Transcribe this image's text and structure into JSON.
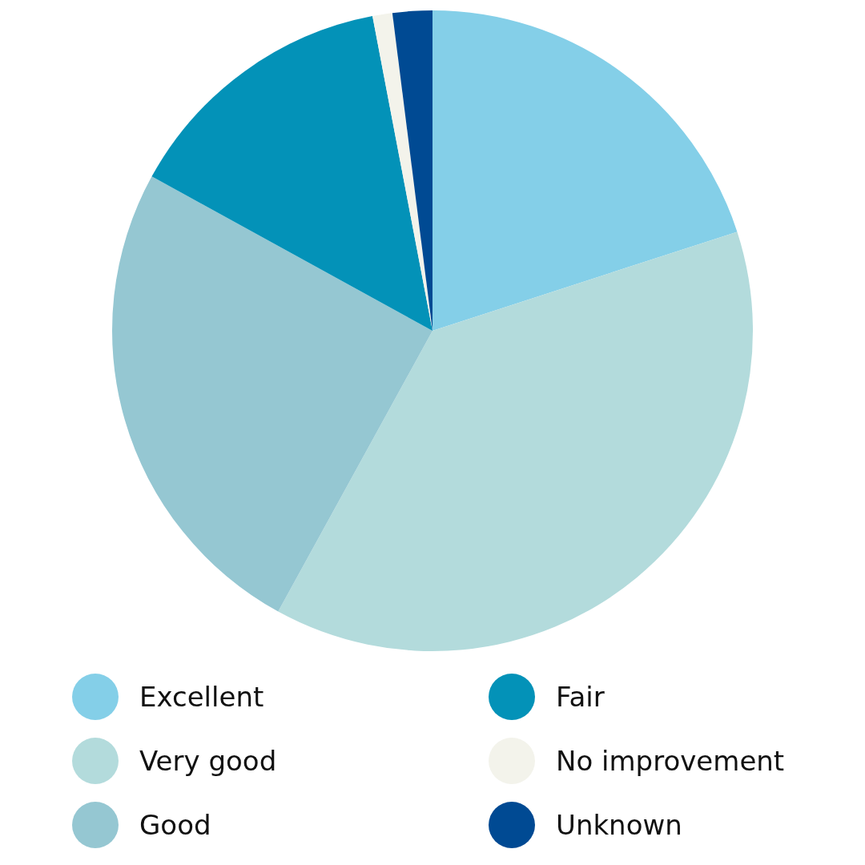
{
  "chart_data": {
    "type": "pie",
    "categories": [
      "Excellent",
      "Very good",
      "Good",
      "Fair",
      "No improvement",
      "Unknown"
    ],
    "values": [
      20,
      38,
      25,
      14,
      1,
      2
    ],
    "colors": [
      "#84cfe8",
      "#b3dbdc",
      "#95c7d2",
      "#0392b8",
      "#f3f3eb",
      "#004a93"
    ],
    "legend": "bottom"
  }
}
